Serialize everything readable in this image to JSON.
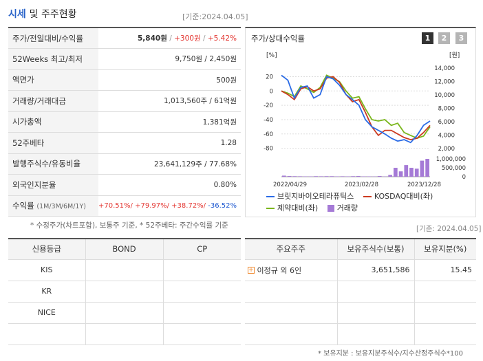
{
  "header": {
    "title_main": "시세",
    "title_sub": "및 주주현황",
    "date": "[기준:2024.04.05]"
  },
  "quote": [
    {
      "label": "주가/전일대비/수익률",
      "price": "5,840원",
      "change": "+300원",
      "rate": "+5.42%"
    },
    {
      "label": "52Weeks 최고/최저",
      "value": "9,750원 / 2,450원"
    },
    {
      "label": "액면가",
      "value": "500원"
    },
    {
      "label": "거래량/거래대금",
      "value": "1,013,560주 / 61억원"
    },
    {
      "label": "시가총액",
      "value": "1,381억원"
    },
    {
      "label": "52주베타",
      "value": "1.28"
    },
    {
      "label": "발행주식수/유동비율",
      "value": "23,641,129주 / 77.68%"
    },
    {
      "label": "외국인지분율",
      "value": "0.80%"
    },
    {
      "label": "수익률",
      "label_sub": "(1M/3M/6M/1Y)",
      "r1": "+70.51%/",
      "r2": "+79.97%/",
      "r3": "+38.72%/",
      "r4": "-36.52%"
    }
  ],
  "quote_note": "* 수정주가(차트포함), 보통주 기준, * 52주베타: 주간수익률 기준",
  "chart_panel": {
    "title": "주가/상대수익률",
    "buttons": [
      "1",
      "2",
      "3"
    ],
    "left_unit": "[%]",
    "right_unit": "[원]",
    "legend": [
      "브릿지바이오테라퓨틱스",
      "KOSDAQ대비(좌)",
      "제약대비(좌)",
      "거래량"
    ],
    "colors": {
      "stock": "#2a6be6",
      "kosdaq": "#cc3a20",
      "pharma": "#7ab61c",
      "volume": "#a57ad6"
    }
  },
  "chart_data": {
    "type": "line",
    "x_ticks": [
      "2022/04/29",
      "2023/02/28",
      "2023/12/28"
    ],
    "left_axis": {
      "ticks": [
        "20",
        "0",
        "-20",
        "-40",
        "-60",
        "-80"
      ],
      "ylim": [
        -90,
        32
      ]
    },
    "right_axis": {
      "ticks": [
        "14,000",
        "12,000",
        "10,000",
        "8,000",
        "6,000",
        "4,000",
        "2,000"
      ],
      "ylim": [
        1000,
        14000
      ]
    },
    "volume_axis": {
      "ticks": [
        "1,000,000",
        "500,000",
        "0"
      ]
    },
    "series": [
      {
        "name": "브릿지바이오테라퓨틱스",
        "values": [
          22,
          15,
          -10,
          5,
          7,
          -10,
          -5,
          20,
          17,
          8,
          -5,
          -12,
          -20,
          -40,
          -50,
          -55,
          -60,
          -66,
          -70,
          -68,
          -72,
          -62,
          -48,
          -42
        ]
      },
      {
        "name": "KOSDAQ대비(좌)",
        "values": [
          0,
          -5,
          -12,
          3,
          6,
          0,
          3,
          18,
          20,
          12,
          -5,
          -15,
          -12,
          -30,
          -50,
          -62,
          -55,
          -55,
          -60,
          -65,
          -68,
          -66,
          -58,
          -48
        ]
      },
      {
        "name": "제약대비(좌)",
        "values": [
          0,
          -3,
          -8,
          7,
          3,
          -2,
          5,
          22,
          18,
          13,
          0,
          -10,
          -8,
          -25,
          -40,
          -42,
          -40,
          -48,
          -45,
          -58,
          -62,
          -66,
          -63,
          -50
        ]
      },
      {
        "name": "거래량",
        "values": [
          60000,
          40000,
          30000,
          25000,
          20000,
          20000,
          30000,
          25000,
          30000,
          30000,
          20000,
          25000,
          20000,
          30000,
          40000,
          20000,
          20000,
          15000,
          40000,
          15000,
          100000,
          500000,
          300000,
          650000,
          500000,
          450000,
          900000,
          1000000
        ]
      }
    ]
  },
  "credit": {
    "headers": [
      "신용등급",
      "BOND",
      "CP"
    ],
    "rows": [
      "KIS",
      "KR",
      "NICE"
    ]
  },
  "holders": {
    "date": "[기준: 2024.04.05]",
    "headers": [
      "주요주주",
      "보유주식수(보통)",
      "보유지분(%)"
    ],
    "rows": [
      {
        "name": "이정규 외 6인",
        "shares": "3,651,586",
        "pct": "15.45"
      }
    ],
    "note": "* 보유지분 : 보유지분주식수/지수산정주식수*100"
  }
}
